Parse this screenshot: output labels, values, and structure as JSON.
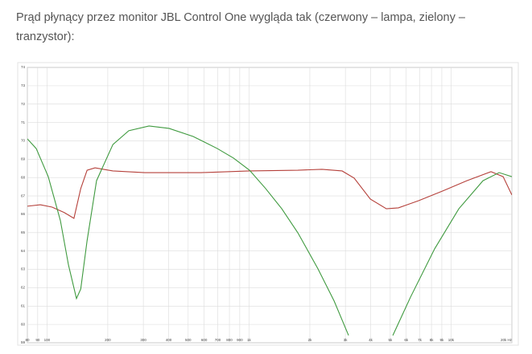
{
  "paragraph": "Prąd płynący przez monitor JBL Control One wygląda tak (czerwony – lampa, zielony – tranzystor):",
  "chart_data": {
    "type": "line",
    "xlog": true,
    "grid": true,
    "xlim": [
      80,
      20000
    ],
    "ylim": [
      59,
      74
    ],
    "xticks": [
      80,
      90,
      100,
      200,
      300,
      400,
      500,
      600,
      700,
      800,
      900,
      {
        "value": 1000,
        "label": "1k"
      },
      {
        "value": 2000,
        "label": "2k"
      },
      {
        "value": 3000,
        "label": "3k"
      },
      {
        "value": 4000,
        "label": "4k"
      },
      {
        "value": 5000,
        "label": "5k"
      },
      {
        "value": 6000,
        "label": "6k"
      },
      {
        "value": 7000,
        "label": "7k"
      },
      {
        "value": 8000,
        "label": "8k"
      },
      {
        "value": 9000,
        "label": "9k"
      },
      {
        "value": 10000,
        "label": "10k"
      },
      {
        "value": 20000,
        "label": "20k Hz"
      }
    ],
    "yticks": [
      59,
      60,
      61,
      62,
      63,
      64,
      65,
      66,
      67,
      68,
      69,
      70,
      71,
      72,
      73,
      74
    ],
    "series": [
      {
        "color": "#b5403a",
        "x": [
          80,
          92.7,
          106,
          122,
          136,
          147,
          158,
          173,
          212,
          305,
          580,
          1006,
          1745,
          2297,
          2890,
          3316,
          3984,
          4786,
          5490,
          6910,
          9096,
          11974,
          15767,
          18100,
          20000
        ],
        "values": [
          66.44,
          66.52,
          66.39,
          66.09,
          65.78,
          67.4,
          68.4,
          68.53,
          68.36,
          68.27,
          68.27,
          68.36,
          68.4,
          68.45,
          68.36,
          67.97,
          66.83,
          66.3,
          66.35,
          66.74,
          67.27,
          67.83,
          68.32,
          68.05,
          67.05
        ]
      },
      {
        "color": "#3f9a3f",
        "x": [
          80,
          88.5,
          101.5,
          116.6,
          127.8,
          140,
          147,
          158,
          176,
          212,
          254,
          320,
          402,
          529,
          697,
          838,
          1006,
          1209,
          1453,
          1745,
          2194,
          2637,
          3110,
          4000,
          5150,
          6302,
          8296,
          10929,
          14390,
          17290,
          20000
        ],
        "values": [
          70.11,
          69.58,
          68.05,
          65.65,
          63.24,
          61.41,
          61.93,
          64.56,
          67.83,
          69.8,
          70.55,
          70.81,
          70.68,
          70.24,
          69.58,
          69.06,
          68.4,
          67.4,
          66.3,
          64.99,
          63.03,
          61.28,
          59.4,
          null,
          59.4,
          61.49,
          64.12,
          66.3,
          67.83,
          68.27,
          68.05
        ]
      }
    ]
  }
}
